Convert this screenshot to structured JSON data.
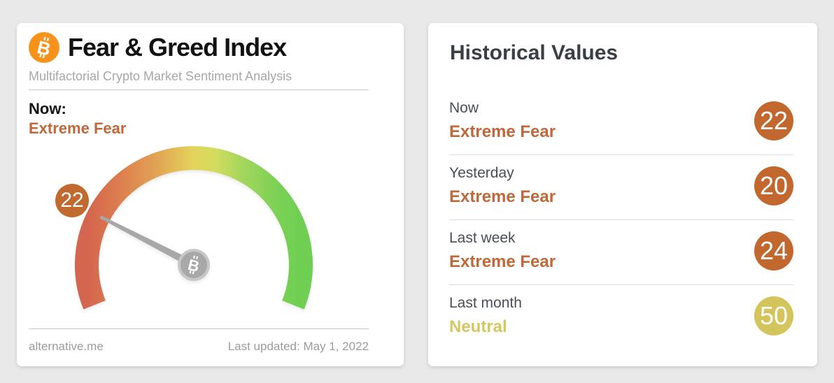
{
  "page": {
    "background": "#e9e9e9"
  },
  "left_card": {
    "title": "Fear & Greed Index",
    "subtitle": "Multifactorial Crypto Market Sentiment Analysis",
    "now_label": "Now:",
    "now_value": "Extreme Fear",
    "now_color": "#c0683a",
    "gauge_badge_value": "22",
    "gauge_badge_color": "#c1692f",
    "source": "alternative.me",
    "last_updated": "Last updated: May 1, 2022"
  },
  "right_card": {
    "title": "Historical Values",
    "rows": [
      {
        "period": "Now",
        "classification": "Extreme Fear",
        "value": "22",
        "text_color": "#c0683a",
        "badge_color": "#c2682e"
      },
      {
        "period": "Yesterday",
        "classification": "Extreme Fear",
        "value": "20",
        "text_color": "#c0683a",
        "badge_color": "#c2682e"
      },
      {
        "period": "Last week",
        "classification": "Extreme Fear",
        "value": "24",
        "text_color": "#c0683a",
        "badge_color": "#c2682e"
      },
      {
        "period": "Last month",
        "classification": "Neutral",
        "value": "50",
        "text_color": "#d5c75f",
        "badge_color": "#d3c55c"
      }
    ]
  },
  "icons": {
    "header": "bitcoin-icon",
    "header_color": "#f7931a",
    "gauge_center": "bitcoin-icon",
    "gauge_center_color": "#a8a8a8"
  },
  "chart_data": {
    "type": "gauge",
    "title": "Fear & Greed Index",
    "value": 22,
    "classification": "Extreme Fear",
    "range": [
      0,
      100
    ],
    "start_angle_deg": 202,
    "sweep_deg": 224,
    "gradient": [
      "#d4654e",
      "#db7b4f",
      "#e1a254",
      "#e3d45b",
      "#d3dc60",
      "#a5d75c",
      "#7dd156",
      "#6ecf52"
    ],
    "needle_color": "#a8a8a8",
    "historical": [
      {
        "period": "Now",
        "classification": "Extreme Fear",
        "value": 22
      },
      {
        "period": "Yesterday",
        "classification": "Extreme Fear",
        "value": 20
      },
      {
        "period": "Last week",
        "classification": "Extreme Fear",
        "value": 24
      },
      {
        "period": "Last month",
        "classification": "Neutral",
        "value": 50
      }
    ]
  }
}
